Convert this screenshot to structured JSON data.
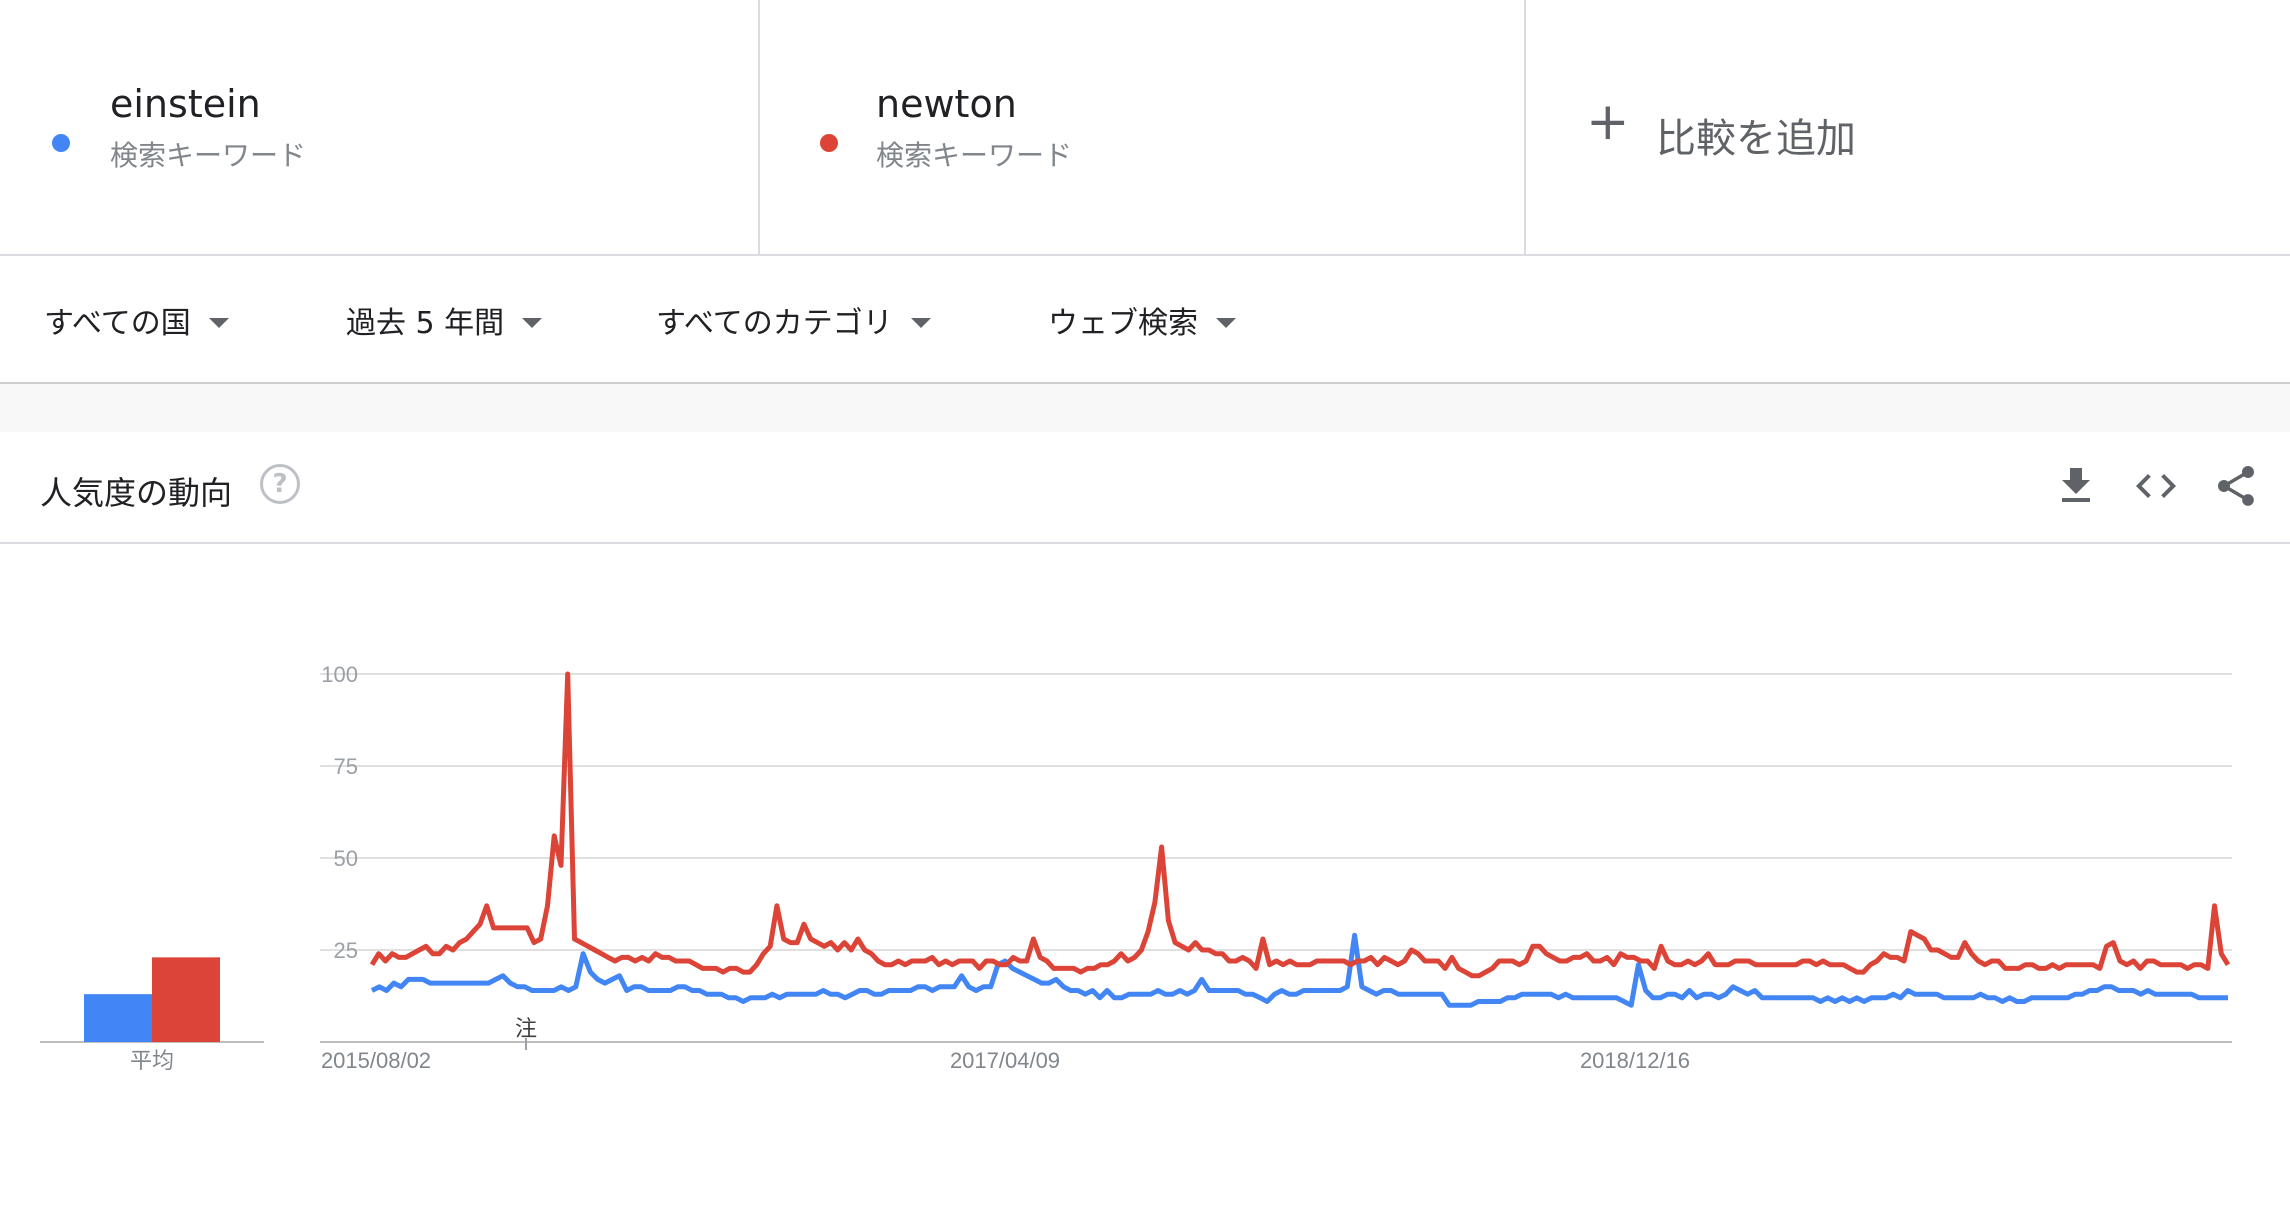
{
  "terms": [
    {
      "name": "einstein",
      "type": "検索キーワード",
      "color": "#4285f4"
    },
    {
      "name": "newton",
      "type": "検索キーワード",
      "color": "#db4437"
    }
  ],
  "add_compare": {
    "label": "比較を追加",
    "icon": "plus-icon"
  },
  "filters": [
    {
      "label": "すべての国"
    },
    {
      "label": "過去 5 年間"
    },
    {
      "label": "すべてのカテゴリ"
    },
    {
      "label": "ウェブ検索"
    }
  ],
  "card": {
    "title": "人気度の動向",
    "help_icon": "help-circle-icon",
    "tools": [
      "download-icon",
      "embed-code-icon",
      "share-icon"
    ]
  },
  "chart_data": {
    "type": "line",
    "y_ticks": [
      "100",
      "75",
      "50",
      "25"
    ],
    "ylim": [
      0,
      100
    ],
    "x_ticks": [
      "2015/08/02",
      "2017/04/09",
      "2018/12/16"
    ],
    "average_label": "平均",
    "annotation": "注",
    "averages": [
      {
        "name": "einstein",
        "value": 13,
        "color": "#4285f4"
      },
      {
        "name": "newton",
        "value": 23,
        "color": "#db4437"
      }
    ],
    "series": [
      {
        "name": "einstein",
        "color": "#4285f4",
        "values": [
          14,
          15,
          14,
          16,
          15,
          17,
          17,
          17,
          16,
          16,
          16,
          16,
          16,
          16,
          16,
          16,
          16,
          17,
          18,
          16,
          15,
          15,
          14,
          14,
          14,
          14,
          15,
          14,
          15,
          24,
          19,
          17,
          16,
          17,
          18,
          14,
          15,
          15,
          14,
          14,
          14,
          14,
          15,
          15,
          14,
          14,
          13,
          13,
          13,
          12,
          12,
          11,
          12,
          12,
          12,
          13,
          12,
          13,
          13,
          13,
          13,
          13,
          14,
          13,
          13,
          12,
          13,
          14,
          14,
          13,
          13,
          14,
          14,
          14,
          14,
          15,
          15,
          14,
          15,
          15,
          15,
          18,
          15,
          14,
          15,
          15,
          21,
          22,
          20,
          19,
          18,
          17,
          16,
          16,
          17,
          15,
          14,
          14,
          13,
          14,
          12,
          14,
          12,
          12,
          13,
          13,
          13,
          13,
          14,
          13,
          13,
          14,
          13,
          14,
          17,
          14,
          14,
          14,
          14,
          14,
          13,
          13,
          12,
          11,
          13,
          14,
          13,
          13,
          14,
          14,
          14,
          14,
          14,
          14,
          15,
          29,
          15,
          14,
          13,
          14,
          14,
          13,
          13,
          13,
          13,
          13,
          13,
          13,
          10,
          10,
          10,
          10,
          11,
          11,
          11,
          11,
          12,
          12,
          13,
          13,
          13,
          13,
          13,
          12,
          13,
          12,
          12,
          12,
          12,
          12,
          12,
          12,
          11,
          10,
          21,
          14,
          12,
          12,
          13,
          13,
          12,
          14,
          12,
          13,
          13,
          12,
          13,
          15,
          14,
          13,
          14,
          12,
          12,
          12,
          12,
          12,
          12,
          12,
          12,
          11,
          12,
          11,
          12,
          11,
          12,
          11,
          12,
          12,
          12,
          13,
          12,
          14,
          13,
          13,
          13,
          13,
          12,
          12,
          12,
          12,
          12,
          13,
          12,
          12,
          11,
          12,
          11,
          11,
          12,
          12,
          12,
          12,
          12,
          12,
          13,
          13,
          14,
          14,
          15,
          15,
          14,
          14,
          14,
          13,
          14,
          13,
          13,
          13,
          13,
          13,
          13,
          12,
          12,
          12,
          12,
          12
        ]
      },
      {
        "name": "newton",
        "color": "#db4437",
        "values": [
          21,
          24,
          22,
          24,
          23,
          23,
          24,
          25,
          26,
          24,
          24,
          26,
          25,
          27,
          28,
          30,
          32,
          37,
          31,
          31,
          31,
          31,
          31,
          31,
          27,
          28,
          37,
          56,
          48,
          100,
          28,
          27,
          26,
          25,
          24,
          23,
          22,
          23,
          23,
          22,
          23,
          22,
          24,
          23,
          23,
          22,
          22,
          22,
          21,
          20,
          20,
          20,
          19,
          20,
          20,
          19,
          19,
          21,
          24,
          26,
          37,
          28,
          27,
          27,
          32,
          28,
          27,
          26,
          27,
          25,
          27,
          25,
          28,
          25,
          24,
          22,
          21,
          21,
          22,
          21,
          22,
          22,
          22,
          23,
          21,
          22,
          21,
          22,
          22,
          22,
          20,
          22,
          22,
          21,
          21,
          23,
          22,
          22,
          28,
          23,
          22,
          20,
          20,
          20,
          20,
          19,
          20,
          20,
          21,
          21,
          22,
          24,
          22,
          23,
          25,
          30,
          38,
          53,
          33,
          27,
          26,
          25,
          27,
          25,
          25,
          24,
          24,
          22,
          22,
          23,
          22,
          20,
          28,
          21,
          22,
          21,
          22,
          21,
          21,
          21,
          22,
          22,
          22,
          22,
          22,
          21,
          22,
          22,
          23,
          21,
          23,
          22,
          21,
          22,
          25,
          24,
          22,
          22,
          22,
          20,
          23,
          20,
          19,
          18,
          18,
          19,
          20,
          22,
          22,
          22,
          21,
          22,
          26,
          26,
          24,
          23,
          22,
          22,
          23,
          23,
          24,
          22,
          22,
          23,
          21,
          24,
          23,
          23,
          22,
          22,
          20,
          26,
          22,
          21,
          21,
          22,
          21,
          22,
          24,
          21,
          21,
          21,
          22,
          22,
          22,
          21,
          21,
          21,
          21,
          21,
          21,
          21,
          22,
          22,
          21,
          22,
          21,
          21,
          21,
          20,
          19,
          19,
          21,
          22,
          24,
          23,
          23,
          22,
          30,
          29,
          28,
          25,
          25,
          24,
          23,
          23,
          27,
          24,
          22,
          21,
          22,
          22,
          20,
          20,
          20,
          21,
          21,
          20,
          20,
          21,
          20,
          21,
          21,
          21,
          21,
          21,
          20,
          26,
          27,
          22,
          21,
          22,
          20,
          22,
          22,
          21,
          21,
          21,
          21,
          20,
          21,
          21,
          20,
          37,
          24,
          21
        ]
      }
    ]
  }
}
